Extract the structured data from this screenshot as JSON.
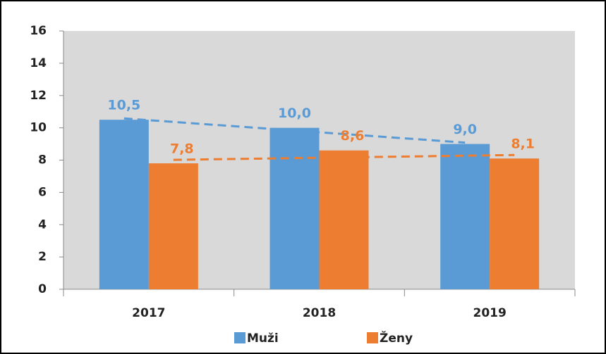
{
  "chart_data": {
    "type": "bar",
    "categories": [
      "2017",
      "2018",
      "2019"
    ],
    "series": [
      {
        "name": "Muži",
        "color": "#5b9bd5",
        "values": [
          10.5,
          10.0,
          9.0
        ],
        "value_labels": [
          "10,5",
          "10,0",
          "9,0"
        ]
      },
      {
        "name": "Ženy",
        "color": "#ed7d31",
        "values": [
          7.8,
          8.6,
          8.1
        ],
        "value_labels": [
          "7,8",
          "8,6",
          "8,1"
        ]
      }
    ],
    "ylim": [
      0,
      16
    ],
    "yticks": [
      0,
      2,
      4,
      6,
      8,
      10,
      12,
      14,
      16
    ],
    "trendline": true,
    "legend": "bottom"
  }
}
